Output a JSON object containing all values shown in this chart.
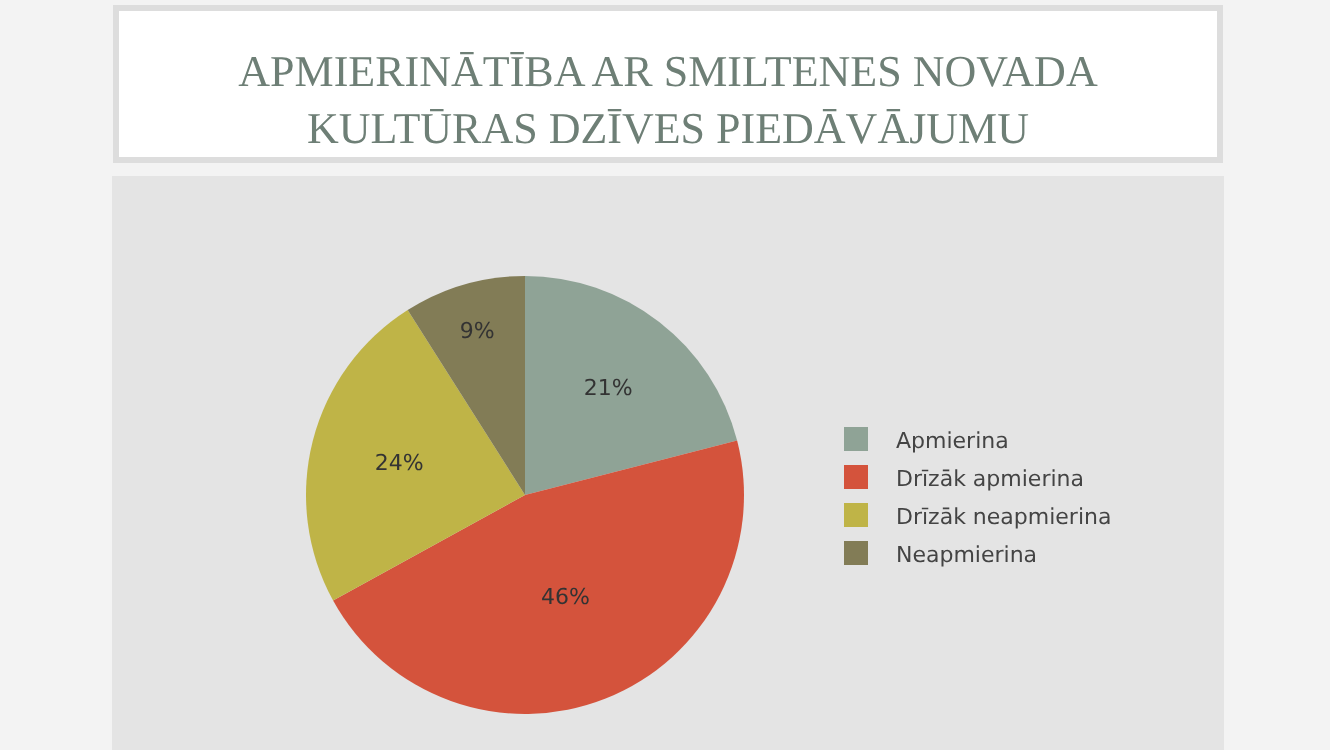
{
  "chart_data": {
    "type": "pie",
    "title": "APMIERINĀTĪBA AR SMILTENES NOVADA\nKULTŪRAS DZĪVES PIEDĀVĀJUMU",
    "categories": [
      "Apmierina",
      "Drīzāk apmierina",
      "Drīzāk neapmierina",
      "Neapmierina"
    ],
    "values": [
      21,
      46,
      24,
      9
    ],
    "value_labels": [
      "21%",
      "46%",
      "24%",
      "9%"
    ],
    "colors": [
      "#8fa396",
      "#d4533c",
      "#bfb447",
      "#827c56"
    ],
    "legend": "right"
  }
}
